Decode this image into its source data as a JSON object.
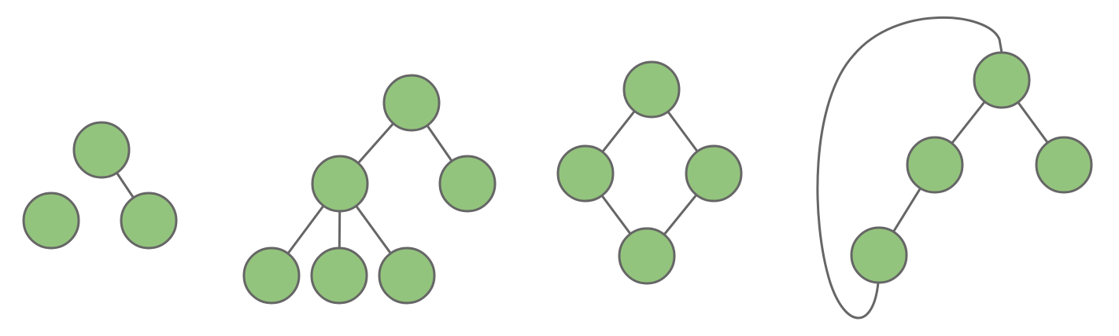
{
  "diagram": {
    "style": {
      "node_fill": "#93c47d",
      "node_stroke": "#666666",
      "edge_stroke": "#666666"
    },
    "graphs": [
      {
        "id": "graph-1",
        "nodes": [
          "root",
          "left",
          "right"
        ],
        "edges": [
          [
            "root",
            "right"
          ]
        ]
      },
      {
        "id": "graph-2",
        "nodes": [
          "root",
          "a",
          "b",
          "a1",
          "a2",
          "a3"
        ],
        "edges": [
          [
            "root",
            "a"
          ],
          [
            "root",
            "b"
          ],
          [
            "a",
            "a1"
          ],
          [
            "a",
            "a2"
          ],
          [
            "a",
            "a3"
          ]
        ]
      },
      {
        "id": "graph-3",
        "nodes": [
          "top",
          "left",
          "right",
          "bottom"
        ],
        "edges": [
          [
            "top",
            "left"
          ],
          [
            "top",
            "right"
          ],
          [
            "left",
            "bottom"
          ],
          [
            "right",
            "bottom"
          ]
        ]
      },
      {
        "id": "graph-4",
        "nodes": [
          "root",
          "a",
          "b",
          "a1"
        ],
        "edges": [
          [
            "root",
            "a"
          ],
          [
            "root",
            "b"
          ],
          [
            "a",
            "a1"
          ],
          [
            "a1",
            "root"
          ]
        ]
      }
    ]
  }
}
